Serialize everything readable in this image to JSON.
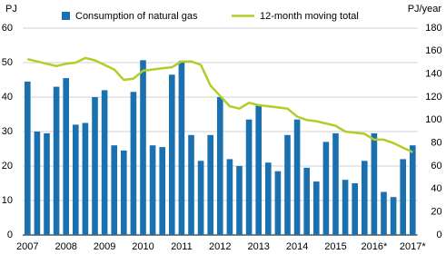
{
  "chart_data": {
    "type": "bar_line",
    "y_label": "PJ",
    "y2_label": "PJ/year",
    "categories": [
      "2007",
      null,
      null,
      null,
      "2008",
      null,
      null,
      null,
      "2009",
      null,
      null,
      null,
      "2010",
      null,
      null,
      null,
      "2011",
      null,
      null,
      null,
      "2012",
      null,
      null,
      null,
      "2013",
      null,
      null,
      null,
      "2014",
      null,
      null,
      null,
      "2015",
      null,
      null,
      null,
      "2016*",
      null,
      null,
      null,
      "2017*"
    ],
    "series": [
      {
        "name": "Consumption of natural gas",
        "type": "bar",
        "color": "#1b70b0",
        "values": [
          44.5,
          30,
          29.5,
          43,
          45.5,
          32,
          32.5,
          40,
          42,
          26,
          24.5,
          41.5,
          50.7,
          26,
          25.5,
          46.5,
          50.5,
          29,
          21.5,
          29,
          40,
          22,
          20,
          33.5,
          37.5,
          21,
          18.5,
          29,
          33.5,
          19.5,
          15.5,
          27,
          29.5,
          16,
          15,
          21.5,
          29.5,
          12.5,
          11,
          22,
          26
        ]
      },
      {
        "name": "12-month moving total",
        "type": "line",
        "axis": "y2",
        "color": "#b3cd26",
        "values": [
          153,
          151,
          149,
          147,
          149,
          150,
          154,
          152,
          148,
          144,
          135,
          136,
          143,
          144,
          145,
          146,
          151,
          151,
          148,
          130,
          121,
          112,
          110,
          115,
          113,
          112,
          111,
          110,
          103,
          100,
          99,
          97,
          95,
          90,
          89,
          88,
          83,
          83,
          80,
          76,
          72
        ]
      }
    ],
    "ylim": [
      0,
      60
    ],
    "yticks": [
      0,
      10,
      20,
      30,
      40,
      50,
      60
    ],
    "y2lim": [
      0,
      180
    ],
    "y2ticks": [
      0,
      20,
      40,
      60,
      80,
      100,
      120,
      140,
      160,
      180
    ],
    "grid": true
  }
}
